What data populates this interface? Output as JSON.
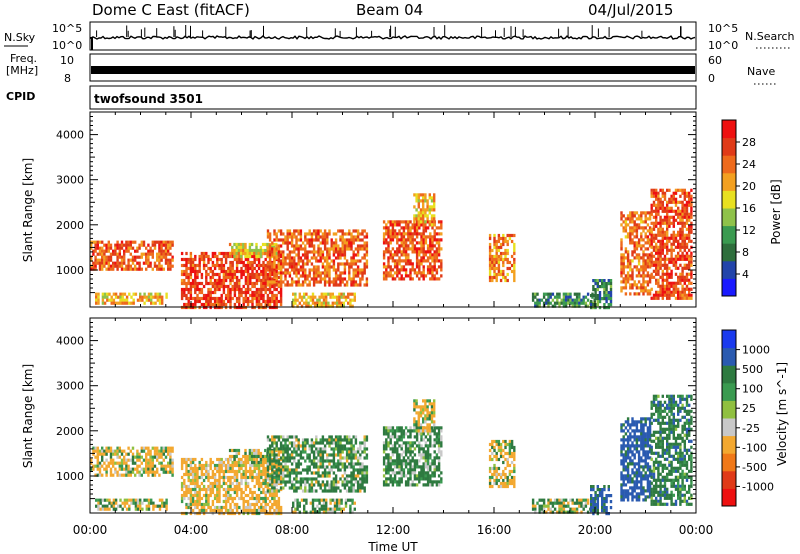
{
  "header": {
    "title": "Dome C East (fitACF)",
    "beam": "Beam 04",
    "date": "04/Jul/2015"
  },
  "strips": {
    "nsky": {
      "label": "N.Sky",
      "ticks": [
        "10^5",
        "10^0"
      ],
      "right_label": "N.Search",
      "right_ticks": [
        "10^5",
        "10^0"
      ]
    },
    "freq": {
      "label_line1": "Freq.",
      "label_line2": "[MHz]",
      "ticks": [
        "10",
        "8"
      ],
      "right_label": "Nave",
      "right_ticks": [
        "60",
        "0"
      ]
    },
    "cpid": {
      "label": "CPID",
      "value": "twofsound 3501"
    }
  },
  "x_axis": {
    "label": "Time UT",
    "ticks": [
      "00:00",
      "04:00",
      "08:00",
      "12:00",
      "16:00",
      "20:00",
      "00:00"
    ],
    "range_hours": [
      0,
      24
    ]
  },
  "colors": {
    "power_scale": [
      "#1a1aff",
      "#2244aa",
      "#2e6e3c",
      "#3a9a50",
      "#8fc24a",
      "#e8e020",
      "#f3a020",
      "#ee6a1c",
      "#e03a18",
      "#ee1010"
    ],
    "velocity_scale": [
      "#ee1010",
      "#e03a18",
      "#f07818",
      "#f3a830",
      "#c8c8c8",
      "#90c040",
      "#3a9a50",
      "#2e7a40",
      "#2a5ab0",
      "#1a3aee"
    ]
  },
  "chart_data": [
    {
      "type": "heatmap",
      "panel": "power",
      "ylabel": "Slant Range [km]",
      "yticks": [
        "1000",
        "2000",
        "3000",
        "4000"
      ],
      "ylim": [
        180,
        4500
      ],
      "xlim": [
        0,
        24
      ],
      "colorbar_label": "Power [dB]",
      "colorbar_ticks": [
        "4",
        "8",
        "12",
        "16",
        "20",
        "24",
        "28"
      ],
      "colorbar_range": [
        0,
        32
      ],
      "regions": [
        {
          "t0": 0.0,
          "t1": 3.3,
          "r0": 1050,
          "r1": 1650,
          "v": 25
        },
        {
          "t0": 0.2,
          "t1": 3.0,
          "r0": 250,
          "r1": 500,
          "v": 20
        },
        {
          "t0": 3.6,
          "t1": 7.6,
          "r0": 180,
          "r1": 1400,
          "v": 27
        },
        {
          "t0": 5.5,
          "t1": 7.4,
          "r0": 1300,
          "r1": 1600,
          "v": 18
        },
        {
          "t0": 7.0,
          "t1": 11.0,
          "r0": 700,
          "r1": 1900,
          "v": 25
        },
        {
          "t0": 8.0,
          "t1": 10.5,
          "r0": 200,
          "r1": 500,
          "v": 20
        },
        {
          "t0": 11.6,
          "t1": 13.9,
          "r0": 800,
          "r1": 2100,
          "v": 26
        },
        {
          "t0": 12.8,
          "t1": 13.6,
          "r0": 2000,
          "r1": 2700,
          "v": 20
        },
        {
          "t0": 15.8,
          "t1": 16.8,
          "r0": 800,
          "r1": 1800,
          "v": 22
        },
        {
          "t0": 17.5,
          "t1": 20.0,
          "r0": 200,
          "r1": 500,
          "v": 10
        },
        {
          "t0": 19.8,
          "t1": 20.6,
          "r0": 200,
          "r1": 800,
          "v": 9
        },
        {
          "t0": 21.0,
          "t1": 22.2,
          "r0": 500,
          "r1": 2300,
          "v": 24
        },
        {
          "t0": 22.2,
          "t1": 23.8,
          "r0": 400,
          "r1": 2800,
          "v": 26
        }
      ]
    },
    {
      "type": "heatmap",
      "panel": "velocity",
      "ylabel": "Slant Range [km]",
      "yticks": [
        "1000",
        "2000",
        "3000",
        "4000"
      ],
      "ylim": [
        180,
        4500
      ],
      "xlim": [
        0,
        24
      ],
      "colorbar_label": "Velocity [m s^-1]",
      "colorbar_ticks": [
        "1000",
        "500",
        "100",
        "25",
        "-25",
        "-100",
        "-500",
        "-1000"
      ],
      "regions": [
        {
          "t0": 0.0,
          "t1": 3.3,
          "r0": 1050,
          "r1": 1650,
          "v": -150
        },
        {
          "t0": 0.2,
          "t1": 3.0,
          "r0": 250,
          "r1": 500,
          "v": -60
        },
        {
          "t0": 3.6,
          "t1": 7.6,
          "r0": 180,
          "r1": 1400,
          "v": -200
        },
        {
          "t0": 5.5,
          "t1": 7.4,
          "r0": 1300,
          "r1": 1600,
          "v": 0
        },
        {
          "t0": 7.0,
          "t1": 11.0,
          "r0": 700,
          "r1": 1900,
          "v": 150
        },
        {
          "t0": 8.0,
          "t1": 10.5,
          "r0": 200,
          "r1": 500,
          "v": 60
        },
        {
          "t0": 11.6,
          "t1": 13.9,
          "r0": 800,
          "r1": 2100,
          "v": 200
        },
        {
          "t0": 12.8,
          "t1": 13.6,
          "r0": 2000,
          "r1": 2700,
          "v": -150
        },
        {
          "t0": 15.8,
          "t1": 16.8,
          "r0": 800,
          "r1": 1800,
          "v": -100
        },
        {
          "t0": 17.5,
          "t1": 20.0,
          "r0": 200,
          "r1": 500,
          "v": 40
        },
        {
          "t0": 19.8,
          "t1": 20.6,
          "r0": 200,
          "r1": 800,
          "v": 600
        },
        {
          "t0": 21.0,
          "t1": 22.2,
          "r0": 500,
          "r1": 2300,
          "v": 700
        },
        {
          "t0": 22.2,
          "t1": 23.8,
          "r0": 400,
          "r1": 2800,
          "v": 300
        }
      ]
    }
  ]
}
